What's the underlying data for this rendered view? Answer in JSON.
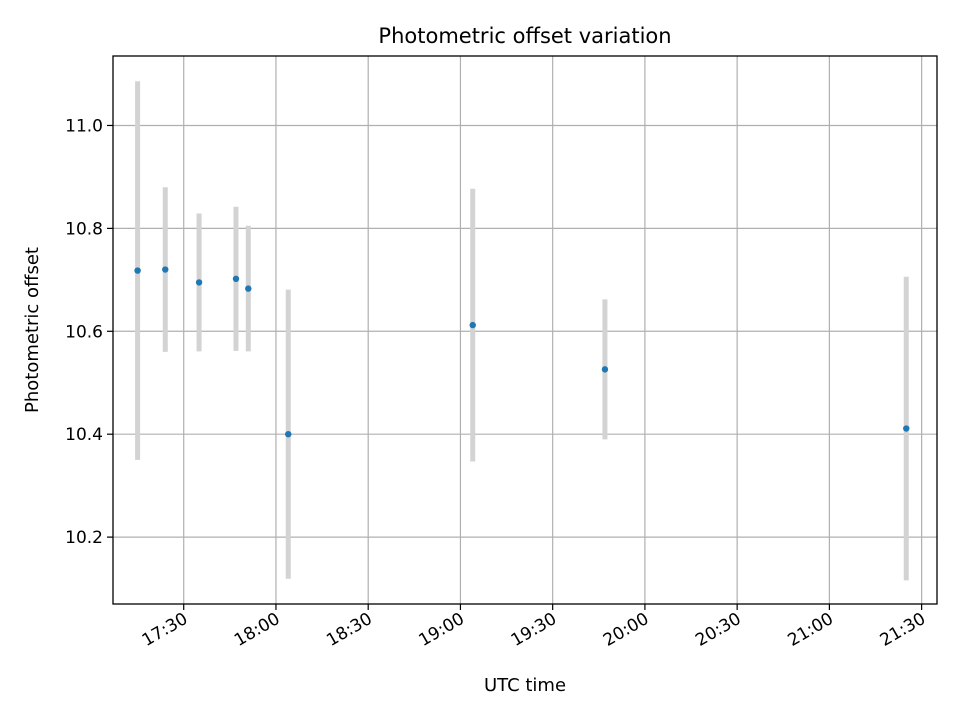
{
  "chart_data": {
    "type": "scatter",
    "title": "Photometric offset variation",
    "xlabel": "UTC time",
    "ylabel": "Photometric offset",
    "x_ticks": [
      "17:30",
      "18:00",
      "18:30",
      "19:00",
      "19:30",
      "20:00",
      "20:30",
      "21:00",
      "21:30"
    ],
    "y_ticks": [
      "10.2",
      "10.4",
      "10.6",
      "10.8",
      "11.0"
    ],
    "xlim": [
      "17:07",
      "21:35"
    ],
    "ylim": [
      10.07,
      11.135
    ],
    "grid": true,
    "colors": {
      "point": "#1f77b4",
      "errorbar": "#d3d3d3",
      "grid": "#b0b0b0"
    },
    "series": [
      {
        "points": [
          {
            "x": "17:15",
            "y": 10.718,
            "yerr": 0.368
          },
          {
            "x": "17:24",
            "y": 10.72,
            "yerr": 0.16
          },
          {
            "x": "17:35",
            "y": 10.695,
            "yerr": 0.134
          },
          {
            "x": "17:47",
            "y": 10.702,
            "yerr": 0.14
          },
          {
            "x": "17:51",
            "y": 10.683,
            "yerr": 0.122
          },
          {
            "x": "18:04",
            "y": 10.4,
            "yerr": 0.281
          },
          {
            "x": "19:04",
            "y": 10.612,
            "yerr": 0.265
          },
          {
            "x": "19:47",
            "y": 10.526,
            "yerr": 0.136
          },
          {
            "x": "21:25",
            "y": 10.411,
            "yerr": 0.295
          }
        ]
      }
    ]
  }
}
